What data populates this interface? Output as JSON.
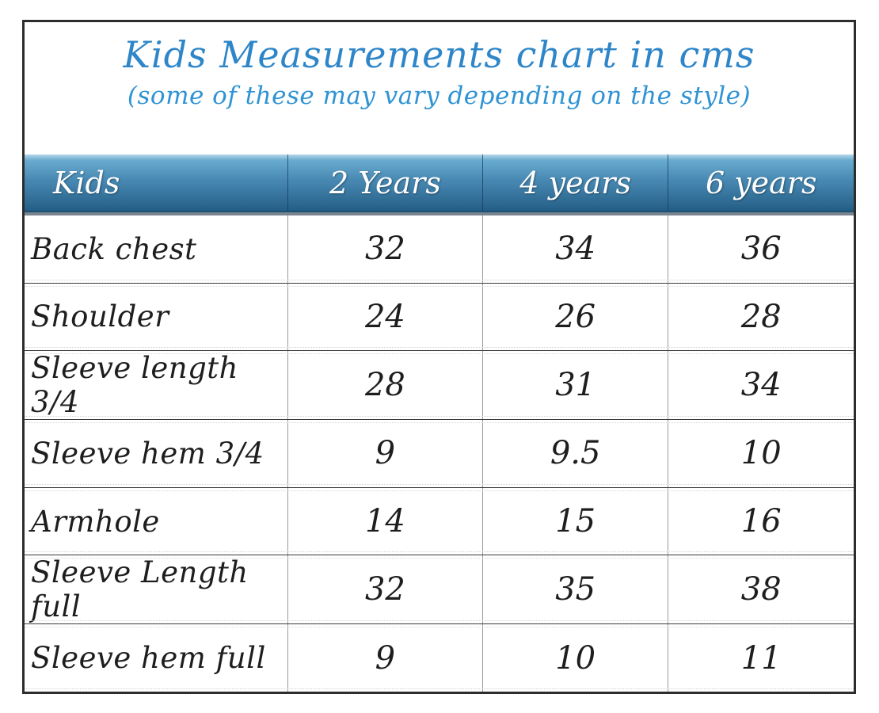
{
  "title": "Kids Measurements chart in cms",
  "subtitle": "(some of these may vary depending on the style)",
  "colors": {
    "title_text": "#2e86c9",
    "subtitle_text": "#2f93d4",
    "header_text": "#ffffff",
    "header_gradient_top": "#b6d7ea",
    "header_gradient_mid": "#4889b3",
    "header_gradient_bottom": "#235d85",
    "body_text": "#1e1e1e",
    "outer_border": "#2d2d2d"
  },
  "table": {
    "columns": [
      "Kids",
      "2 Years",
      "4 years",
      "6 years"
    ],
    "rows": [
      {
        "label": "Back chest",
        "values": [
          "32",
          "34",
          "36"
        ]
      },
      {
        "label": "Shoulder",
        "values": [
          "24",
          "26",
          "28"
        ]
      },
      {
        "label": "Sleeve length 3/4",
        "values": [
          "28",
          "31",
          "34"
        ]
      },
      {
        "label": "Sleeve hem 3/4",
        "values": [
          "9",
          "9.5",
          "10"
        ]
      },
      {
        "label": "Armhole",
        "values": [
          "14",
          "15",
          "16"
        ]
      },
      {
        "label": "Sleeve Length full",
        "values": [
          "32",
          "35",
          "38"
        ]
      },
      {
        "label": "Sleeve hem full",
        "values": [
          "9",
          "10",
          "11"
        ]
      }
    ]
  },
  "chart_data": {
    "type": "table",
    "title": "Kids Measurements chart in cms",
    "subtitle": "(some of these may vary depending on the style)",
    "columns": [
      "Kids",
      "2 Years",
      "4 years",
      "6 years"
    ],
    "rows": [
      [
        "Back chest",
        32,
        34,
        36
      ],
      [
        "Shoulder",
        24,
        26,
        28
      ],
      [
        "Sleeve length 3/4",
        28,
        31,
        34
      ],
      [
        "Sleeve hem 3/4",
        9,
        9.5,
        10
      ],
      [
        "Armhole",
        14,
        15,
        16
      ],
      [
        "Sleeve Length full",
        32,
        35,
        38
      ],
      [
        "Sleeve hem full",
        9,
        10,
        11
      ]
    ]
  }
}
